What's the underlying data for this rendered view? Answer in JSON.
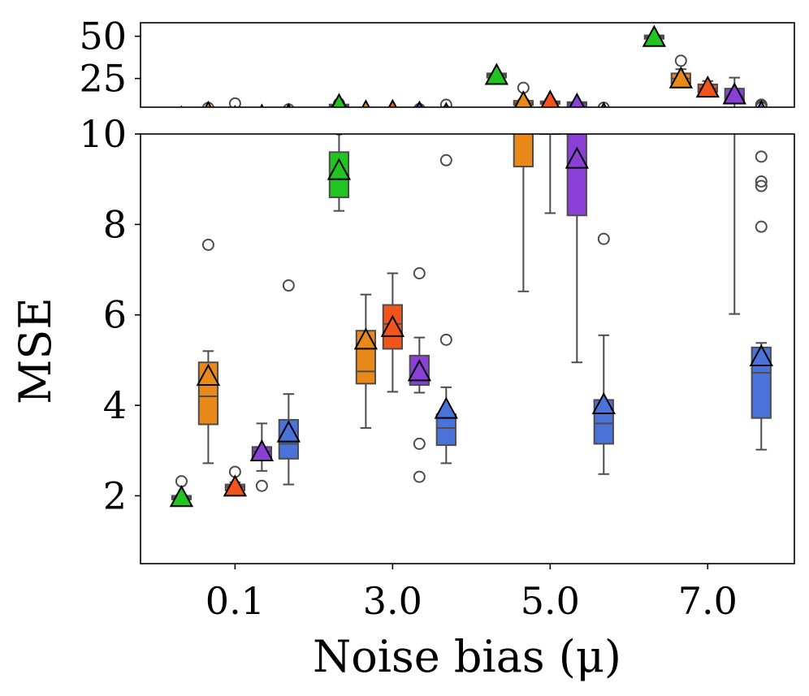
{
  "chart_data": {
    "type": "box",
    "xlabel": "Noise bias (μ)",
    "ylabel": "MSE",
    "categories": [
      "0.1",
      "3.0",
      "5.0",
      "7.0"
    ],
    "series_colors": [
      "#22c422",
      "#e8891a",
      "#f2541b",
      "#8a3fd6",
      "#4a72d8"
    ],
    "panels": {
      "top": {
        "ylim": [
          8,
          58
        ],
        "yticks": [
          25,
          50
        ]
      },
      "bottom": {
        "ylim": [
          0.5,
          10
        ],
        "yticks": [
          2,
          4,
          6,
          8,
          10
        ]
      }
    },
    "groups": [
      {
        "category": "0.1",
        "boxes": [
          {
            "series": 0,
            "q1": 1.92,
            "med": 1.96,
            "q3": 2.0,
            "wlo": 1.9,
            "whi": 2.02,
            "mean": 1.97,
            "outliers": [
              2.32
            ]
          },
          {
            "series": 1,
            "q1": 3.58,
            "med": 4.2,
            "q3": 4.95,
            "wlo": 2.72,
            "whi": 5.2,
            "mean": 4.65,
            "outliers": [
              7.55
            ]
          },
          {
            "series": 2,
            "q1": 2.12,
            "med": 2.2,
            "q3": 2.25,
            "wlo": 2.1,
            "whi": 2.3,
            "mean": 2.2,
            "outliers": [
              2.53,
              10.2
            ]
          },
          {
            "series": 3,
            "q1": 2.8,
            "med": 2.98,
            "q3": 3.08,
            "wlo": 2.55,
            "whi": 3.6,
            "mean": 2.98,
            "outliers": [
              2.22
            ]
          },
          {
            "series": 4,
            "q1": 2.82,
            "med": 3.15,
            "q3": 3.68,
            "wlo": 2.25,
            "whi": 4.25,
            "mean": 3.4,
            "outliers": [
              6.65
            ]
          }
        ]
      },
      {
        "category": "3.0",
        "boxes": [
          {
            "series": 0,
            "q1": 8.6,
            "med": 9.0,
            "q3": 9.6,
            "wlo": 8.3,
            "whi": 10.2,
            "mean": 9.2,
            "outliers": [
              10.1
            ]
          },
          {
            "series": 1,
            "q1": 4.48,
            "med": 4.75,
            "q3": 5.65,
            "wlo": 3.5,
            "whi": 6.45,
            "mean": 5.45,
            "outliers": []
          },
          {
            "series": 2,
            "q1": 5.25,
            "med": 5.8,
            "q3": 6.22,
            "wlo": 4.3,
            "whi": 6.92,
            "mean": 5.73,
            "outliers": []
          },
          {
            "series": 3,
            "q1": 4.45,
            "med": 4.65,
            "q3": 5.1,
            "wlo": 4.28,
            "whi": 5.5,
            "mean": 4.75,
            "outliers": [
              6.92,
              3.15,
              2.42
            ]
          },
          {
            "series": 4,
            "q1": 3.12,
            "med": 3.5,
            "q3": 3.8,
            "wlo": 2.72,
            "whi": 4.4,
            "mean": 3.92,
            "outliers": [
              5.45,
              9.42
            ]
          }
        ]
      },
      {
        "category": "5.0",
        "boxes": [
          {
            "series": 0,
            "q1": 25.5,
            "med": 27.0,
            "q3": 28.0,
            "wlo": 25.5,
            "whi": 28.0,
            "mean": 27.0,
            "outliers": []
          },
          {
            "series": 1,
            "q1": 9.28,
            "med": 10.5,
            "q3": 11.8,
            "wlo": 6.52,
            "whi": 12.5,
            "mean": 10.8,
            "outliers": [
              19.5
            ]
          },
          {
            "series": 2,
            "q1": 10.0,
            "med": 10.8,
            "q3": 11.5,
            "wlo": 8.25,
            "whi": 12.5,
            "mean": 11.2,
            "outliers": []
          },
          {
            "series": 3,
            "q1": 8.2,
            "med": 10.2,
            "q3": 11.0,
            "wlo": 4.95,
            "whi": 11.0,
            "mean": 9.45,
            "outliers": []
          },
          {
            "series": 4,
            "q1": 3.15,
            "med": 3.6,
            "q3": 4.12,
            "wlo": 2.48,
            "whi": 5.55,
            "mean": 4.02,
            "outliers": [
              7.68
            ]
          }
        ]
      },
      {
        "category": "7.0",
        "boxes": [
          {
            "series": 0,
            "q1": 48.5,
            "med": 49.5,
            "q3": 50.5,
            "wlo": 48.5,
            "whi": 50.5,
            "mean": 49.5,
            "outliers": []
          },
          {
            "series": 1,
            "q1": 22.0,
            "med": 25.0,
            "q3": 28.0,
            "wlo": 22.0,
            "whi": 30.5,
            "mean": 25.0,
            "outliers": [
              35.5
            ]
          },
          {
            "series": 2,
            "q1": 17.0,
            "med": 19.0,
            "q3": 21.5,
            "wlo": 15.0,
            "whi": 23.5,
            "mean": 19.5,
            "outliers": []
          },
          {
            "series": 3,
            "q1": 10.6,
            "med": 14.5,
            "q3": 19.0,
            "wlo": 6.02,
            "whi": 25.5,
            "mean": 15.5,
            "outliers": []
          },
          {
            "series": 4,
            "q1": 3.72,
            "med": 4.72,
            "q3": 5.28,
            "wlo": 3.02,
            "whi": 5.38,
            "mean": 5.08,
            "outliers": [
              7.95,
              8.85,
              8.95,
              9.5
            ]
          }
        ]
      }
    ]
  }
}
